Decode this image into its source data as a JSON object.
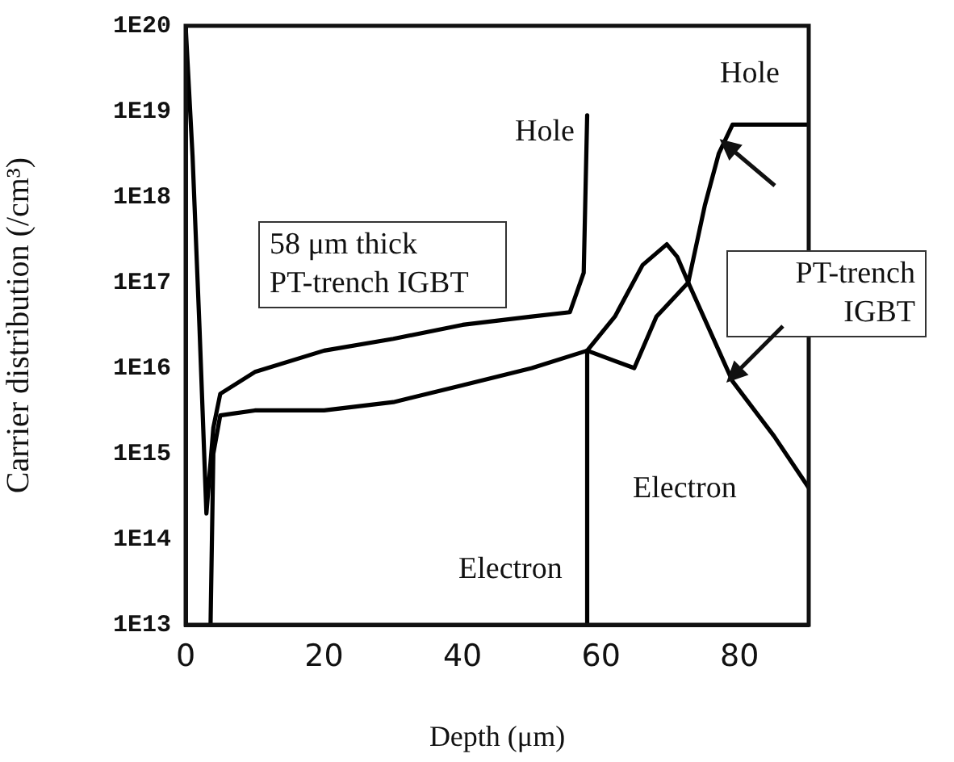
{
  "chart_data": {
    "type": "line",
    "xlabel": "Depth (μm)",
    "ylabel": "Carrier distribution (/cm³)",
    "log": "y",
    "xlim": [
      0,
      90
    ],
    "xticks": [
      0,
      20,
      40,
      60,
      80
    ],
    "ylim": [
      10000000000000.0,
      1e+20
    ],
    "yticks": [
      {
        "value": 10000000000000.0,
        "label": "1E13"
      },
      {
        "value": 100000000000000.0,
        "label": "1E14"
      },
      {
        "value": 1000000000000000.0,
        "label": "1E15"
      },
      {
        "value": 1e+16,
        "label": "1E16"
      },
      {
        "value": 1e+17,
        "label": "1E17"
      },
      {
        "value": 1e+18,
        "label": "1E18"
      },
      {
        "value": 1e+19,
        "label": "1E19"
      },
      {
        "value": 1e+20,
        "label": "1E20"
      }
    ],
    "grid": false,
    "legend": false,
    "marker": "none",
    "line_style": "solid",
    "series": [
      {
        "color": "#000000",
        "x": [
          0,
          1,
          2,
          3,
          4,
          5,
          10,
          20,
          30,
          40,
          50,
          55.5,
          57.5,
          58
        ],
        "values": [
          1e+20,
          3e+18,
          3e+16,
          200000000000000.0,
          2000000000000000.0,
          5000000000000000.0,
          9000000000000000.0,
          1.6e+16,
          2.2e+16,
          3.2e+16,
          4e+16,
          4.5e+16,
          1.3e+17,
          9e+18
        ]
      },
      {
        "color": "#000000",
        "x": [
          3.6,
          4,
          5,
          10,
          20,
          30,
          40,
          50,
          58,
          64.8,
          68,
          72.6,
          75,
          77,
          79,
          90
        ],
        "values": [
          10000000000000.0,
          1000000000000000.0,
          2800000000000000.0,
          3200000000000000.0,
          3200000000000000.0,
          4000000000000000.0,
          6300000000000000.0,
          1e+16,
          1.6e+16,
          1e+16,
          4e+16,
          1e+17,
          8e+17,
          3.2e+18,
          7e+18,
          7e+18
        ]
      },
      {
        "color": "#000000",
        "x": [
          58,
          62,
          66,
          69.5,
          71,
          72.6,
          79,
          85,
          90
        ],
        "values": [
          1.6e+16,
          4e+16,
          1.6e+17,
          2.8e+17,
          2e+17,
          1e+17,
          7000000000000000.0,
          1600000000000000.0,
          400000000000000.0
        ]
      },
      {
        "color": "#000000",
        "x": [
          58,
          58
        ],
        "values": [
          1.6e+16,
          10000000000000.0
        ]
      }
    ],
    "annotations": [
      "Hole",
      "Electron",
      "Hole",
      "Electron",
      "58 μm thick PT-trench IGBT",
      "PT-trench IGBT"
    ]
  }
}
